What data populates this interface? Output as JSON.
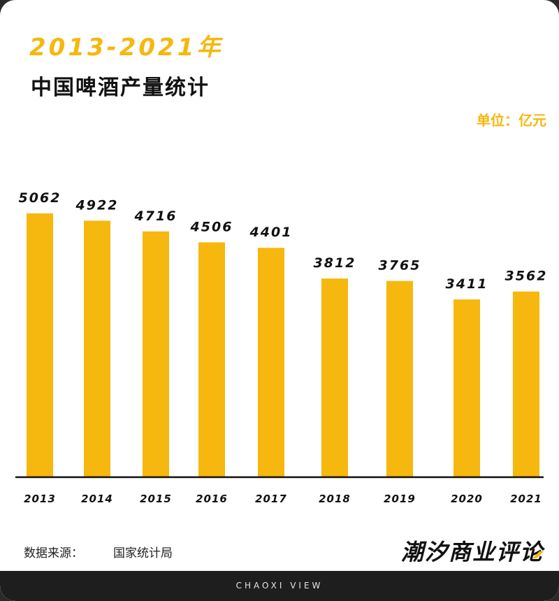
{
  "header": {
    "title_line1": "2013-2021年",
    "title_line2": "中国啤酒产量统计",
    "unit": "单位：亿元"
  },
  "footer": {
    "source_label": "数据来源：",
    "source_value": "国家统计局",
    "brand": "潮汐商业评论",
    "tagline": "CHAOXI VIEW"
  },
  "colors": {
    "bar": "#F6B70E",
    "axis": "#111111",
    "label": "#111111"
  },
  "chart_data": {
    "type": "bar",
    "title": "2013-2021年 中国啤酒产量统计",
    "unit": "单位：亿元",
    "categories": [
      "2013",
      "2014",
      "2015",
      "2016",
      "2017",
      "2018",
      "2019",
      "2020",
      "2021"
    ],
    "values": [
      5062,
      4922,
      4716,
      4506,
      4401,
      3812,
      3765,
      3411,
      3562
    ],
    "ylim": [
      0,
      5062
    ],
    "grid": false,
    "legend": "none"
  }
}
